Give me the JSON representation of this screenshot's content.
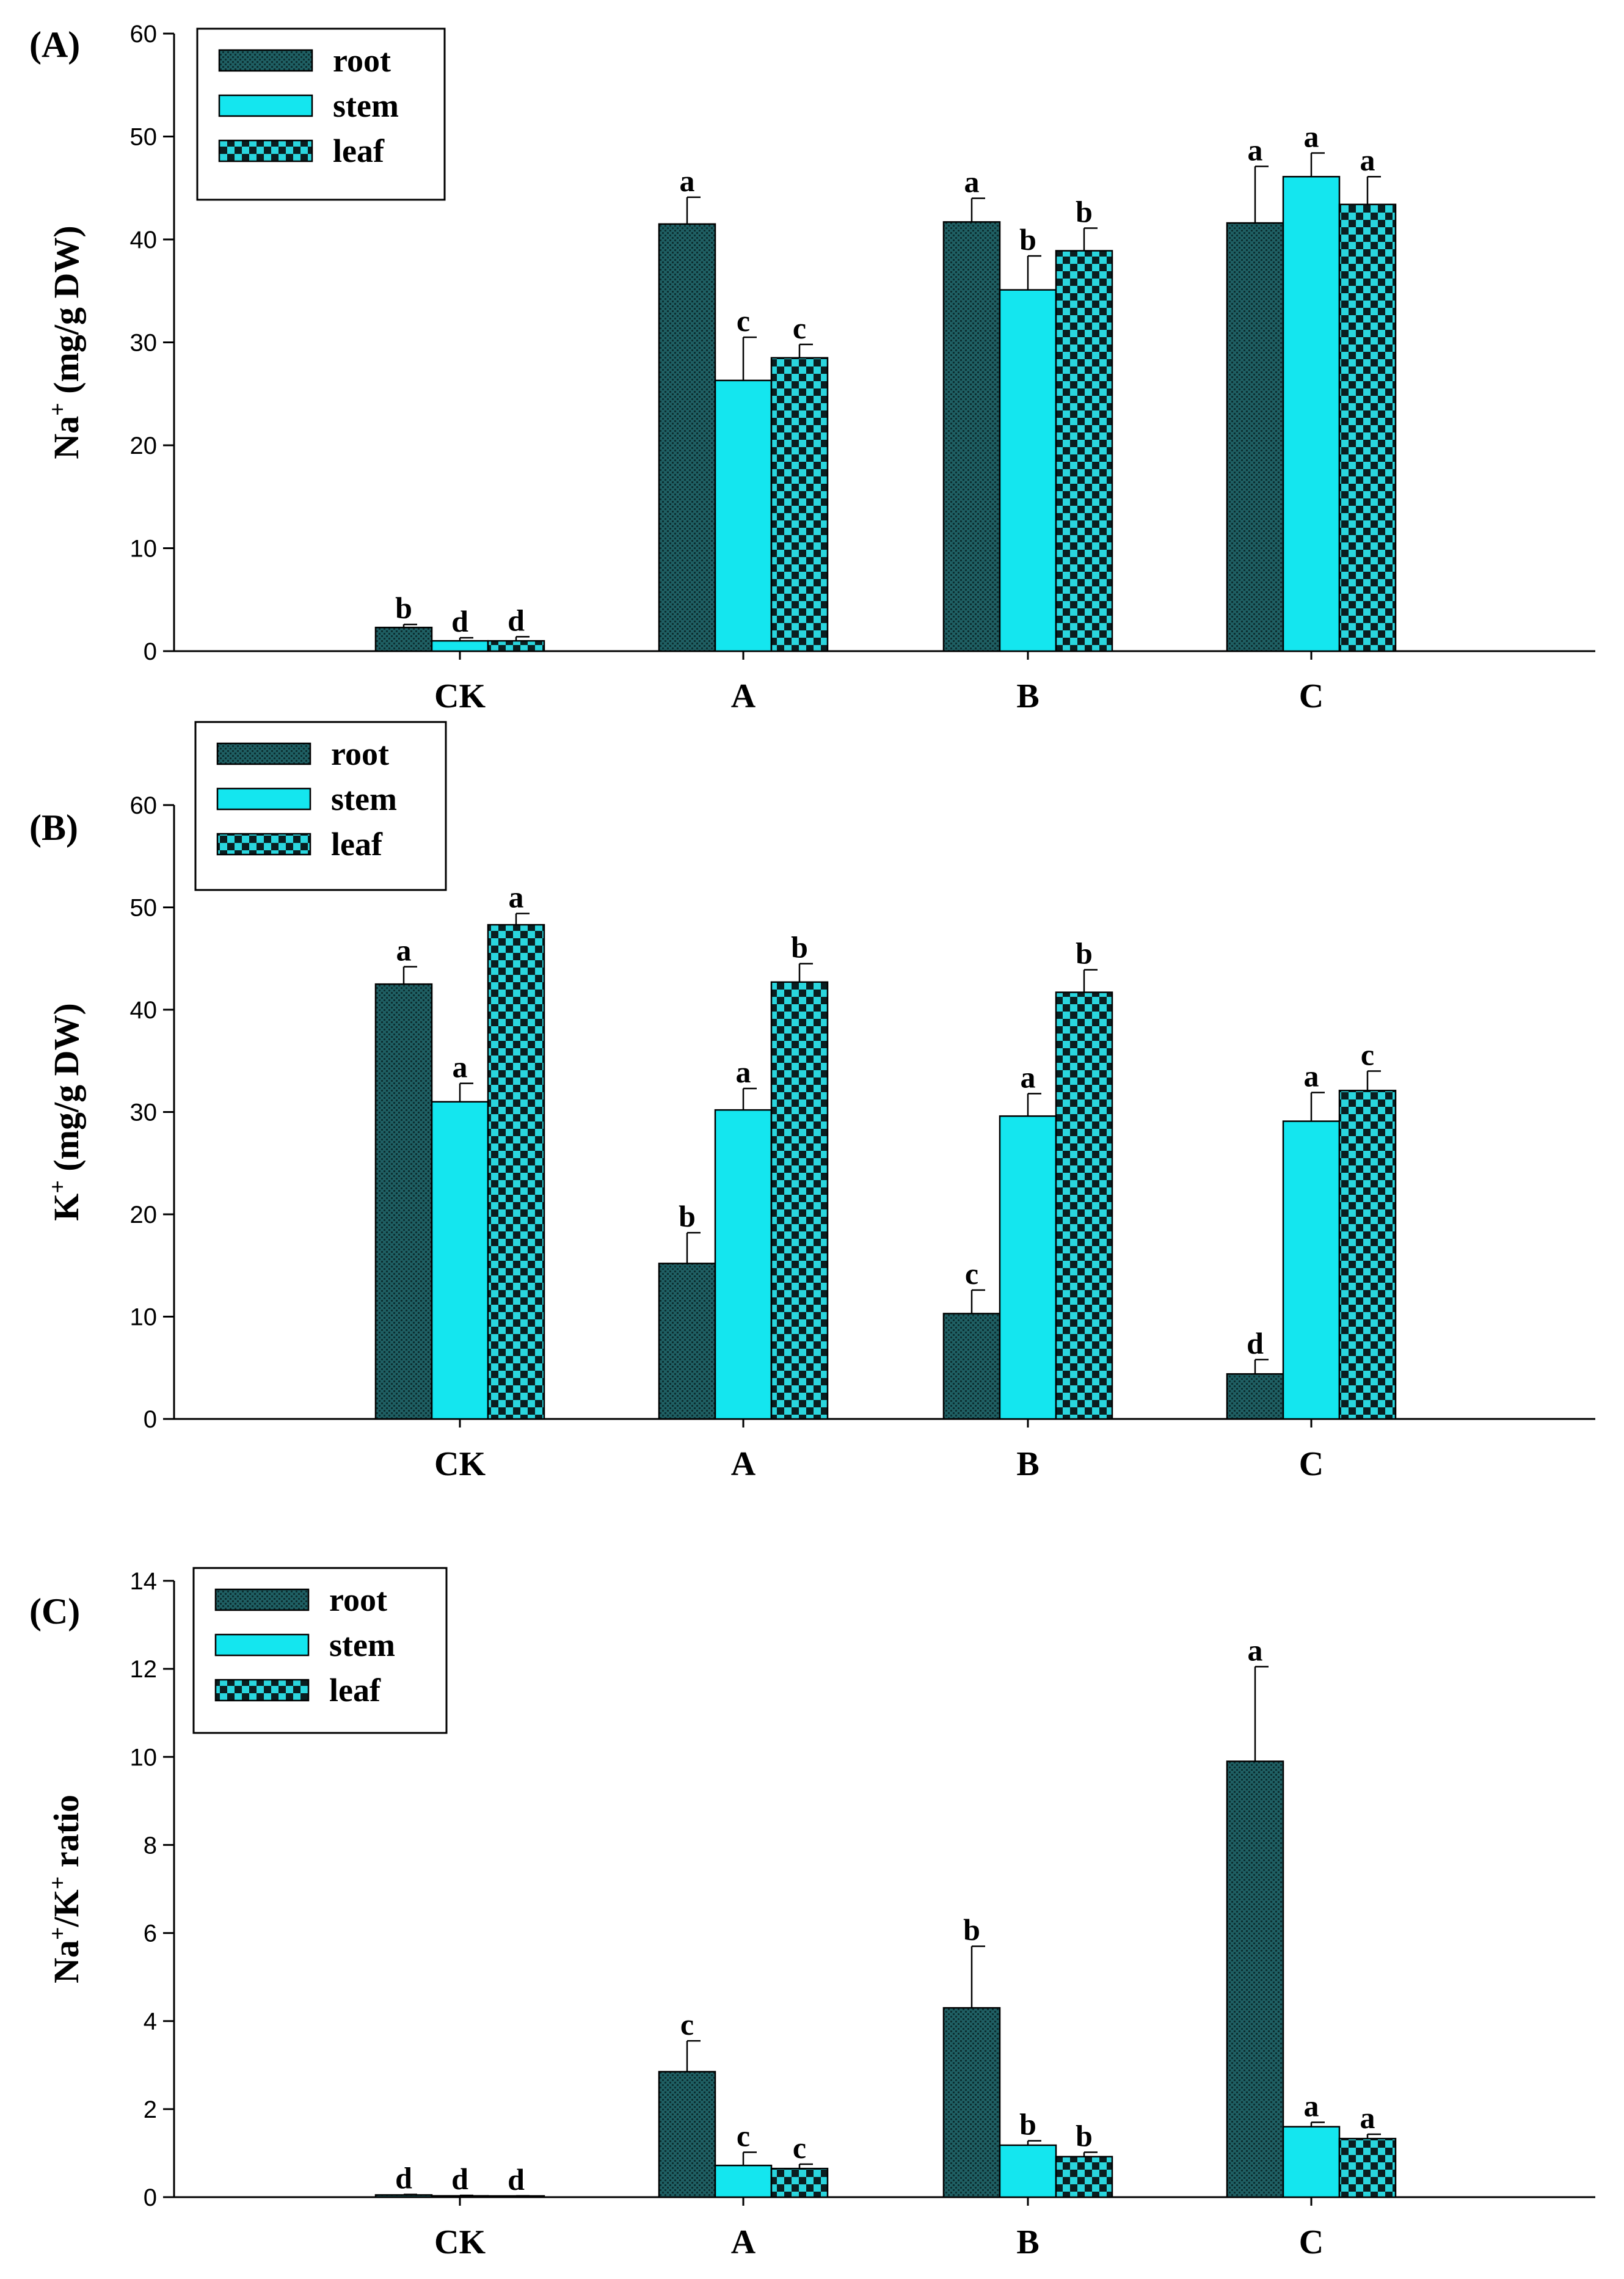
{
  "colors": {
    "root_fill": "#1f5f63",
    "root_dot": "#0c2e30",
    "stem_fill": "#14e6ef",
    "leaf_light": "#2ad6de",
    "leaf_dark": "#0a1e20",
    "axis": "#000000"
  },
  "chart_data": [
    {
      "type": "bar",
      "panel_label": "(A)",
      "ylabel_main": "Na",
      "ylabel_sup": "+",
      "ylabel_rest": " (mg/g DW)",
      "ylim": [
        0,
        60
      ],
      "yticks": [
        "0",
        "10",
        "20",
        "30",
        "40",
        "50",
        "60"
      ],
      "categories": [
        "CK",
        "A",
        "B",
        "C"
      ],
      "legend": [
        "root",
        "stem",
        "leaf"
      ],
      "legend_position": "top-left",
      "series": [
        {
          "name": "root",
          "values": [
            2.3,
            41.5,
            41.7,
            41.6
          ],
          "errors": [
            0.3,
            2.6,
            2.3,
            5.5
          ],
          "letters": [
            "b",
            "a",
            "a",
            "a"
          ]
        },
        {
          "name": "stem",
          "values": [
            1.0,
            26.3,
            35.1,
            46.1
          ],
          "errors": [
            0.3,
            4.2,
            3.3,
            2.3
          ],
          "letters": [
            "d",
            "c",
            "b",
            "a"
          ]
        },
        {
          "name": "leaf",
          "values": [
            1.0,
            28.5,
            38.9,
            43.4
          ],
          "errors": [
            0.4,
            1.3,
            2.2,
            2.7
          ],
          "letters": [
            "d",
            "c",
            "b",
            "a"
          ]
        }
      ]
    },
    {
      "type": "bar",
      "panel_label": "(B)",
      "ylabel_main": "K",
      "ylabel_sup": "+",
      "ylabel_rest": " (mg/g DW)",
      "ylim": [
        0,
        60
      ],
      "yticks": [
        "0",
        "10",
        "20",
        "30",
        "40",
        "50",
        "60"
      ],
      "categories": [
        "CK",
        "A",
        "B",
        "C"
      ],
      "legend": [
        "root",
        "stem",
        "leaf"
      ],
      "legend_position": "top-left",
      "series": [
        {
          "name": "root",
          "values": [
            42.5,
            15.2,
            10.3,
            4.4
          ],
          "errors": [
            1.7,
            3.0,
            2.3,
            1.4
          ],
          "letters": [
            "a",
            "b",
            "c",
            "d"
          ]
        },
        {
          "name": "stem",
          "values": [
            31.0,
            30.2,
            29.6,
            29.1
          ],
          "errors": [
            1.8,
            2.1,
            2.2,
            2.8
          ],
          "letters": [
            "a",
            "a",
            "a",
            "a"
          ]
        },
        {
          "name": "leaf",
          "values": [
            48.3,
            42.7,
            41.7,
            32.1
          ],
          "errors": [
            1.1,
            1.8,
            2.2,
            1.9
          ],
          "letters": [
            "a",
            "b",
            "b",
            "c"
          ]
        }
      ]
    },
    {
      "type": "bar",
      "panel_label": "(C)",
      "ylabel_main": "Na",
      "ylabel_sup": "+",
      "ylabel_mid": "/K",
      "ylabel_sup2": "+",
      "ylabel_rest": " ratio",
      "ylim": [
        0,
        14
      ],
      "yticks": [
        "0",
        "2",
        "4",
        "6",
        "8",
        "10",
        "12",
        "14"
      ],
      "categories": [
        "CK",
        "A",
        "B",
        "C"
      ],
      "legend": [
        "root",
        "stem",
        "leaf"
      ],
      "legend_position": "top-left",
      "series": [
        {
          "name": "root",
          "values": [
            0.05,
            2.85,
            4.3,
            9.9
          ],
          "errors": [
            0.01,
            0.7,
            1.4,
            2.15
          ],
          "letters": [
            "d",
            "c",
            "b",
            "a"
          ]
        },
        {
          "name": "stem",
          "values": [
            0.03,
            0.72,
            1.18,
            1.6
          ],
          "errors": [
            0.01,
            0.3,
            0.1,
            0.1
          ],
          "letters": [
            "d",
            "c",
            "b",
            "a"
          ]
        },
        {
          "name": "leaf",
          "values": [
            0.02,
            0.65,
            0.92,
            1.33
          ],
          "errors": [
            0.01,
            0.1,
            0.1,
            0.1
          ],
          "letters": [
            "d",
            "c",
            "b",
            "a"
          ]
        }
      ]
    }
  ]
}
